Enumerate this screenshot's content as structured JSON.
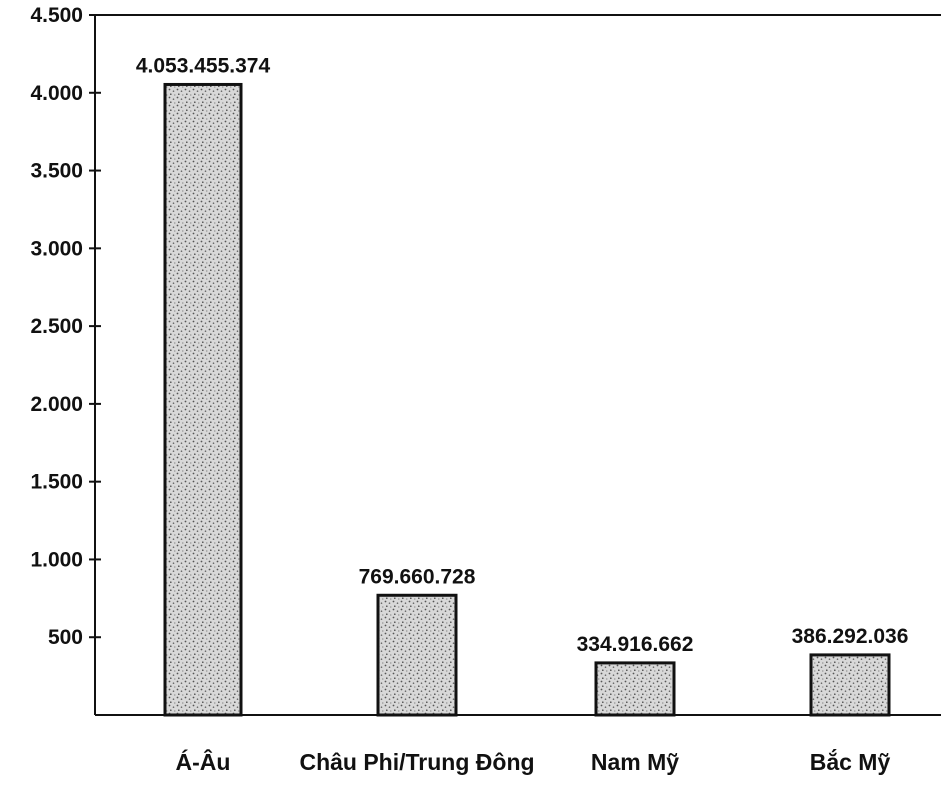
{
  "chart_data": {
    "type": "bar",
    "title": "",
    "xlabel": "",
    "ylabel": "",
    "categories": [
      "Á-Âu",
      "Châu Phi/Trung Đông",
      "Nam Mỹ",
      "Bắc Mỹ"
    ],
    "values": [
      4053.455374,
      769.660728,
      334.916662,
      386.292036
    ],
    "data_labels": [
      "4.053.455.374",
      "769.660.728",
      "334.916.662",
      "386.292.036"
    ],
    "ylim": [
      0,
      4500
    ],
    "yticks": [
      500,
      1000,
      1500,
      2000,
      2500,
      3000,
      3500,
      4000,
      4500
    ],
    "ytick_labels": [
      "500",
      "1.000",
      "1.500",
      "2.000",
      "2.500",
      "3.000",
      "3.500",
      "4.000",
      "4.500"
    ],
    "grid": false,
    "legend": "none",
    "bar_fill": "#cfcfcf",
    "bar_stroke": "#111111"
  }
}
